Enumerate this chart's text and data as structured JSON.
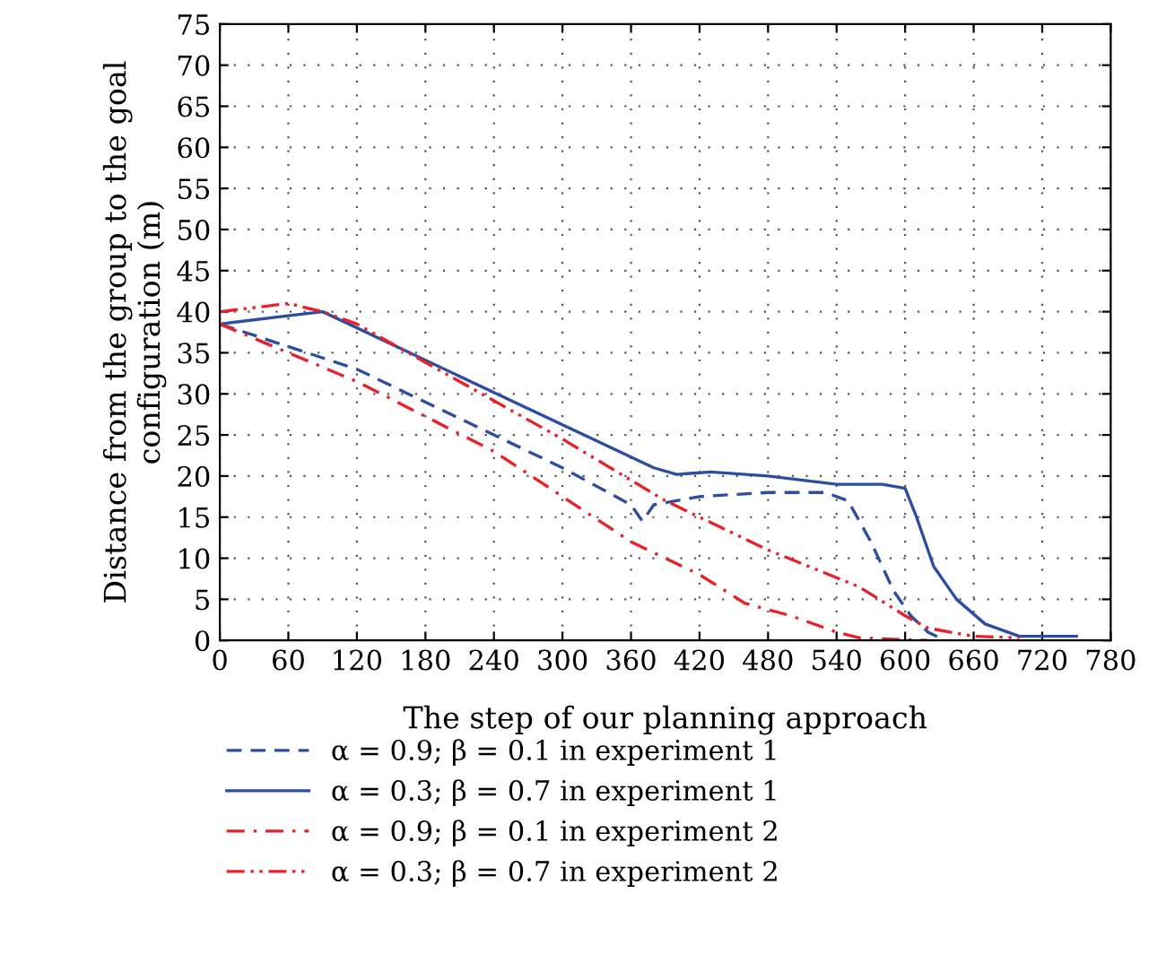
{
  "chart_data": {
    "type": "line",
    "xlabel": "The step of our planning approach",
    "ylabel": "Distance from the group to the goal configuration (m)",
    "xlim": [
      0,
      780
    ],
    "ylim": [
      0,
      75
    ],
    "xticks": [
      0,
      60,
      120,
      180,
      240,
      300,
      360,
      420,
      480,
      540,
      600,
      660,
      720,
      780
    ],
    "yticks": [
      0,
      5,
      10,
      15,
      20,
      25,
      30,
      35,
      40,
      45,
      50,
      55,
      60,
      65,
      70,
      75
    ],
    "grid": true,
    "legend": "bottom",
    "marker": "none",
    "series": [
      {
        "name": "α = 0.9; β = 0.1 in experiment 1",
        "color": "#2b4ea2",
        "line_style": "dashed",
        "x": [
          0,
          120,
          240,
          300,
          360,
          370,
          380,
          420,
          480,
          530,
          550,
          570,
          590,
          605,
          620,
          635
        ],
        "values": [
          38.5,
          33,
          25,
          21,
          16.5,
          14.5,
          16.5,
          17.5,
          18,
          18,
          17,
          12,
          6,
          3,
          1,
          0
        ]
      },
      {
        "name": "α = 0.3; β = 0.7 in experiment 1",
        "color": "#2b4ea2",
        "line_style": "solid",
        "x": [
          0,
          60,
          90,
          380,
          400,
          430,
          480,
          540,
          580,
          600,
          610,
          625,
          645,
          670,
          700,
          750
        ],
        "values": [
          38.5,
          39.5,
          40,
          21,
          20.2,
          20.5,
          20,
          19,
          19,
          18.5,
          15,
          9,
          5,
          2,
          0.5,
          0.5
        ]
      },
      {
        "name": "α = 0.9; β = 0.1 in experiment 2",
        "color": "#e8202a",
        "line_style": "dashdot",
        "x": [
          0,
          120,
          240,
          360,
          420,
          460,
          500,
          540,
          560,
          620
        ],
        "values": [
          38.5,
          31.5,
          23,
          12,
          8,
          4.5,
          3,
          1,
          0.3,
          0
        ]
      },
      {
        "name": "α = 0.3; β = 0.7 in experiment 2",
        "color": "#e8202a",
        "line_style": "dashdotdot",
        "x": [
          0,
          60,
          90,
          120,
          300,
          390,
          480,
          560,
          600,
          620,
          660,
          700
        ],
        "values": [
          40,
          41,
          40,
          38.5,
          24.5,
          17,
          11,
          6.5,
          3,
          1.5,
          0.5,
          0.3
        ]
      }
    ]
  }
}
